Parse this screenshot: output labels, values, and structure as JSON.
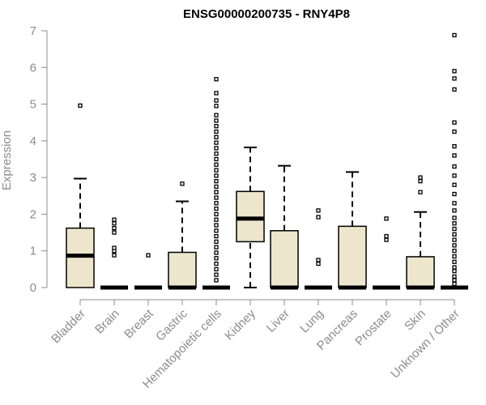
{
  "chart_data": {
    "type": "boxplot",
    "title": "ENSG00000200735 - RNY4P8",
    "xlabel": "",
    "ylabel": "Expression",
    "ylim": [
      0,
      7
    ],
    "yticks": [
      0,
      1,
      2,
      3,
      4,
      5,
      6,
      7
    ],
    "box_color": "#ede6cc",
    "categories": [
      "Bladder",
      "Brain",
      "Breast",
      "Gastric",
      "Hematopoietic cells",
      "Kidney",
      "Liver",
      "Lung",
      "Pancreas",
      "Prostate",
      "Skin",
      "Unknown / Other"
    ],
    "boxes": [
      {
        "q1": 0,
        "median": 0.87,
        "q3": 1.62,
        "whisker_low": 0,
        "whisker_high": 2.97,
        "outliers": [
          4.96
        ]
      },
      {
        "q1": 0,
        "median": 0,
        "q3": 0,
        "whisker_low": 0,
        "whisker_high": 0,
        "outliers": [
          0.88,
          1.0,
          1.08,
          1.5,
          1.62,
          1.75,
          1.85
        ]
      },
      {
        "q1": 0,
        "median": 0,
        "q3": 0,
        "whisker_low": 0,
        "whisker_high": 0,
        "outliers": [
          0.88
        ]
      },
      {
        "q1": 0,
        "median": 0,
        "q3": 0.96,
        "whisker_low": 0,
        "whisker_high": 2.35,
        "outliers": [
          2.83
        ]
      },
      {
        "q1": 0,
        "median": 0,
        "q3": 0,
        "whisker_low": 0,
        "whisker_high": 0,
        "outliers": [
          0.2,
          0.35,
          0.5,
          0.65,
          0.8,
          0.95,
          1.1,
          1.25,
          1.4,
          1.55,
          1.7,
          1.85,
          2.0,
          2.15,
          2.3,
          2.45,
          2.6,
          2.75,
          2.9,
          3.05,
          3.2,
          3.35,
          3.5,
          3.65,
          3.8,
          3.95,
          4.1,
          4.25,
          4.4,
          4.55,
          4.7,
          4.95,
          5.1,
          5.3,
          5.68
        ]
      },
      {
        "q1": 1.25,
        "median": 1.88,
        "q3": 2.62,
        "whisker_low": 0,
        "whisker_high": 3.82,
        "outliers": []
      },
      {
        "q1": 0,
        "median": 0,
        "q3": 1.55,
        "whisker_low": 0,
        "whisker_high": 3.32,
        "outliers": []
      },
      {
        "q1": 0,
        "median": 0,
        "q3": 0,
        "whisker_low": 0,
        "whisker_high": 0,
        "outliers": [
          0.65,
          0.75,
          1.92,
          2.1
        ]
      },
      {
        "q1": 0,
        "median": 0,
        "q3": 1.67,
        "whisker_low": 0,
        "whisker_high": 3.15,
        "outliers": []
      },
      {
        "q1": 0,
        "median": 0,
        "q3": 0,
        "whisker_low": 0,
        "whisker_high": 0,
        "outliers": [
          1.3,
          1.4,
          1.88
        ]
      },
      {
        "q1": 0,
        "median": 0,
        "q3": 0.84,
        "whisker_low": 0,
        "whisker_high": 2.06,
        "outliers": [
          2.6,
          2.9,
          3.0
        ]
      },
      {
        "q1": 0,
        "median": 0,
        "q3": 0,
        "whisker_low": 0,
        "whisker_high": 0,
        "outliers": [
          0.1,
          0.2,
          0.3,
          0.45,
          0.55,
          0.7,
          0.85,
          1.0,
          1.15,
          1.3,
          1.45,
          1.6,
          1.75,
          1.9,
          2.1,
          2.3,
          2.55,
          2.8,
          3.05,
          3.3,
          3.6,
          3.85,
          4.25,
          4.5,
          5.4,
          5.7,
          5.9,
          6.88
        ]
      }
    ]
  }
}
